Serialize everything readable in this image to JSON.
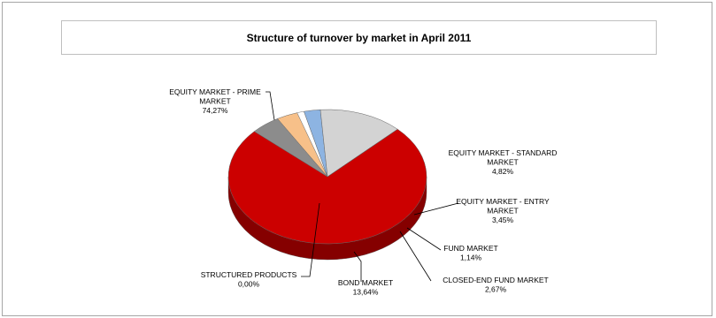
{
  "chart_data": {
    "type": "pie",
    "title": "Structure of turnover by market in April 2011",
    "slices": [
      {
        "label": [
          "EQUITY MARKET - PRIME",
          "MARKET"
        ],
        "value_text": "74,27%",
        "value": 74.27,
        "color": "#cc0000"
      },
      {
        "label": [
          "EQUITY MARKET - STANDARD",
          "MARKET"
        ],
        "value_text": "4,82%",
        "value": 4.82,
        "color": "#8c8c8c"
      },
      {
        "label": [
          "EQUITY MARKET - ENTRY",
          "MARKET"
        ],
        "value_text": "3,45%",
        "value": 3.45,
        "color": "#f7c089"
      },
      {
        "label": [
          "FUND MARKET"
        ],
        "value_text": "1,14%",
        "value": 1.14,
        "color": "#ffffff"
      },
      {
        "label": [
          "CLOSED-END FUND MARKET"
        ],
        "value_text": "2,67%",
        "value": 2.67,
        "color": "#8db4e2"
      },
      {
        "label": [
          "BOND MARKET"
        ],
        "value_text": "13,64%",
        "value": 13.64,
        "color": "#d3d3d3"
      },
      {
        "label": [
          "STRUCTURED PRODUCTS"
        ],
        "value_text": "0,00%",
        "value": 0.0,
        "color": "#bfbfbf"
      }
    ]
  }
}
